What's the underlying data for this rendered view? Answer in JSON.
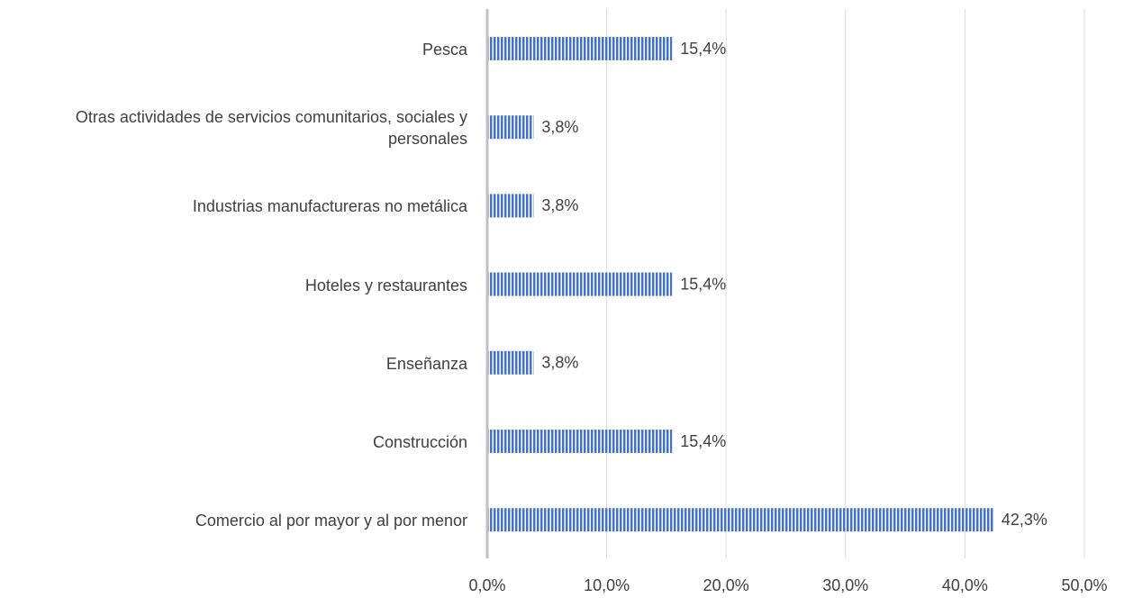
{
  "chart_data": {
    "type": "bar",
    "orientation": "horizontal",
    "categories": [
      "Pesca",
      "Otras actividades de servicios comunitarios, sociales y personales",
      "Industrias manufactureras no metálica",
      "Hoteles y restaurantes",
      "Enseñanza",
      "Construcción",
      "Comercio al por mayor y al por menor"
    ],
    "values": [
      15.4,
      3.8,
      3.8,
      15.4,
      3.8,
      15.4,
      42.3
    ],
    "value_labels": [
      "15,4%",
      "3,8%",
      "3,8%",
      "15,4%",
      "3,8%",
      "15,4%",
      "42,3%"
    ],
    "color": "#4472c4",
    "xlim": [
      0,
      50
    ],
    "xticks": [
      {
        "value": 0,
        "label": "0,0%"
      },
      {
        "value": 10,
        "label": "10,0%"
      },
      {
        "value": 20,
        "label": "20,0%"
      },
      {
        "value": 30,
        "label": "30,0%"
      },
      {
        "value": 40,
        "label": "40,0%"
      },
      {
        "value": 50,
        "label": "50,0%"
      }
    ],
    "grid": true
  }
}
